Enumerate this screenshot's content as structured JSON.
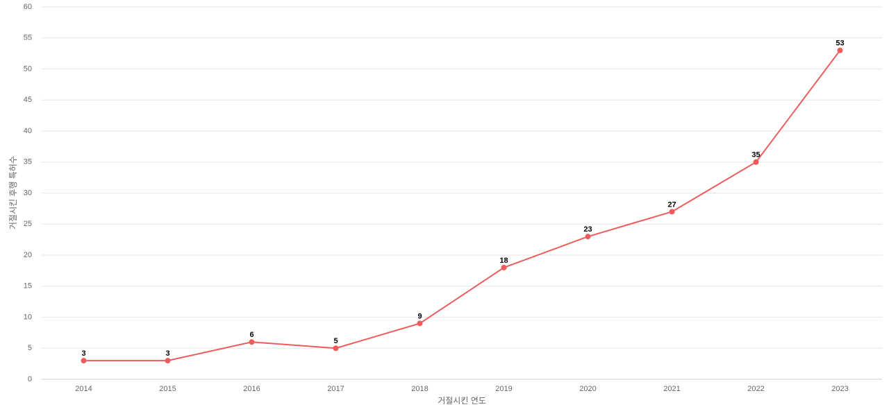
{
  "chart_data": {
    "type": "line",
    "x_label": "거절시킨 연도",
    "y_label": "거절시킨 후행 특허수",
    "categories": [
      "2014",
      "2015",
      "2016",
      "2017",
      "2018",
      "2019",
      "2020",
      "2021",
      "2022",
      "2023"
    ],
    "values": [
      3,
      3,
      6,
      5,
      9,
      18,
      23,
      27,
      35,
      53
    ],
    "color": "#ef5b5b",
    "ylim": [
      0,
      60
    ],
    "yticks": [
      0,
      5,
      10,
      15,
      20,
      25,
      30,
      35,
      40,
      45,
      50,
      55,
      60
    ],
    "grid": true
  }
}
